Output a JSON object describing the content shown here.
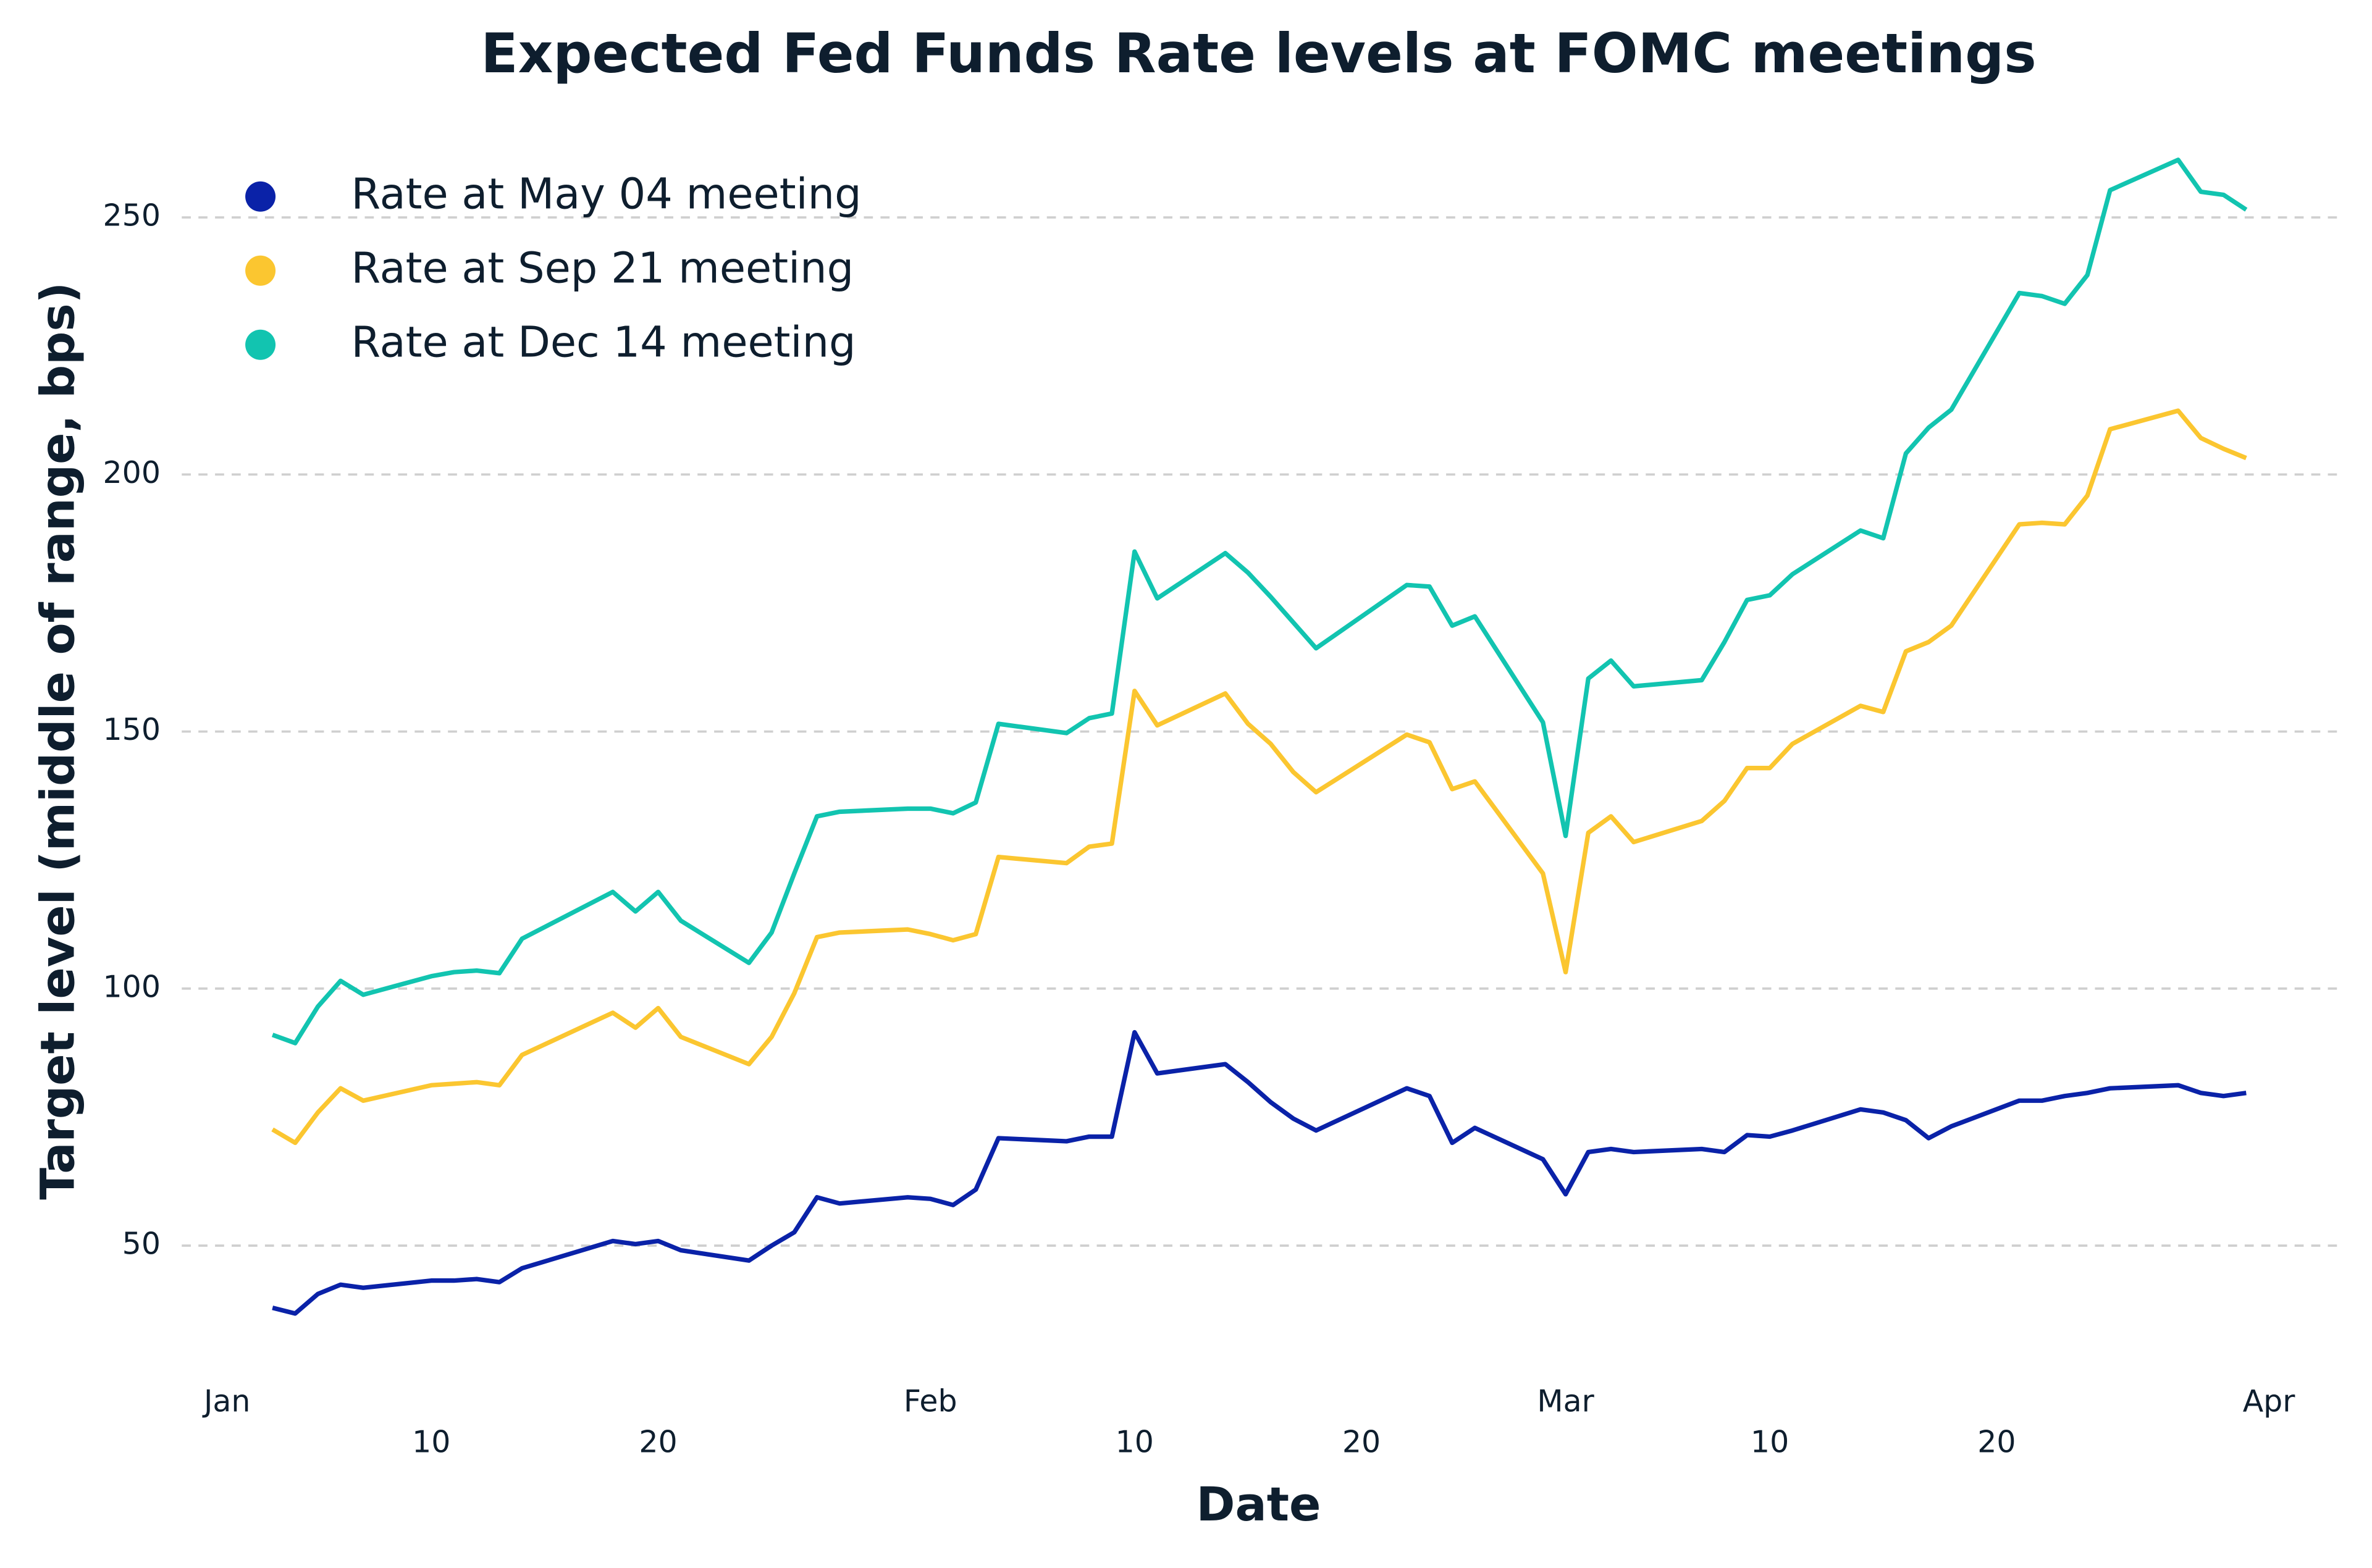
{
  "chart_data": {
    "type": "line",
    "title": "Expected Fed Funds Rate levels at FOMC meetings",
    "x_label": "Date",
    "y_label": "Target level (middle of range, bps)",
    "x": [
      "Jan 3",
      "Jan 4",
      "Jan 5",
      "Jan 6",
      "Jan 7",
      "Jan 10",
      "Jan 11",
      "Jan 12",
      "Jan 13",
      "Jan 14",
      "Jan 18",
      "Jan 19",
      "Jan 20",
      "Jan 21",
      "Jan 24",
      "Jan 25",
      "Jan 26",
      "Jan 27",
      "Jan 28",
      "Jan 31",
      "Feb 1",
      "Feb 2",
      "Feb 3",
      "Feb 4",
      "Feb 7",
      "Feb 8",
      "Feb 9",
      "Feb 10",
      "Feb 11",
      "Feb 14",
      "Feb 15",
      "Feb 16",
      "Feb 17",
      "Feb 18",
      "Feb 22",
      "Feb 23",
      "Feb 24",
      "Feb 25",
      "Feb 28",
      "Mar 1",
      "Mar 2",
      "Mar 3",
      "Mar 4",
      "Mar 7",
      "Mar 8",
      "Mar 9",
      "Mar 10",
      "Mar 11",
      "Mar 14",
      "Mar 15",
      "Mar 16",
      "Mar 17",
      "Mar 18",
      "Mar 21",
      "Mar 22",
      "Mar 23",
      "Mar 24",
      "Mar 25",
      "Mar 28",
      "Mar 29",
      "Mar 30",
      "Mar 31"
    ],
    "series": [
      {
        "name": "Rate at May 04 meeting",
        "color": "#0a22a8",
        "values": [
          37.9,
          36.8,
          40.6,
          42.4,
          41.8,
          43.2,
          43.2,
          43.5,
          42.9,
          45.6,
          50.9,
          50.3,
          50.9,
          49.1,
          47.1,
          50,
          52.6,
          59.4,
          58.2,
          59.4,
          59.1,
          57.9,
          60.9,
          70.9,
          70.3,
          71.2,
          71.2,
          91.5,
          83.5,
          85.3,
          81.8,
          77.9,
          74.7,
          72.4,
          80.6,
          79.1,
          70,
          72.9,
          66.8,
          60,
          68.2,
          68.8,
          68.2,
          68.8,
          68.2,
          71.5,
          71.2,
          72.4,
          76.5,
          75.9,
          74.4,
          70.9,
          73.2,
          78.2,
          78.2,
          79.1,
          79.7,
          80.6,
          81.2,
          79.7,
          79.1,
          79.7
        ]
      },
      {
        "name": "Rate at Sep 21 meeting",
        "color": "#fbc630",
        "values": [
          72.6,
          70,
          75.9,
          80.6,
          78.2,
          81.2,
          81.5,
          81.8,
          81.2,
          87.1,
          95.3,
          92.4,
          96.2,
          90.6,
          85.3,
          90.6,
          99.1,
          110,
          110.9,
          111.5,
          110.6,
          109.4,
          110.6,
          125.6,
          124.4,
          127.6,
          128.2,
          157.9,
          151.2,
          157.4,
          151.5,
          147.6,
          142.1,
          138.2,
          149.4,
          147.9,
          138.8,
          140.3,
          122.4,
          103.2,
          130.3,
          133.5,
          128.5,
          132.6,
          136.5,
          142.9,
          142.9,
          147.6,
          155,
          153.8,
          165.6,
          167.4,
          170.6,
          190.3,
          190.6,
          190.3,
          195.9,
          208.8,
          212.4,
          207.1,
          205,
          203.2
        ]
      },
      {
        "name": "Rate at Dec 14 meeting",
        "color": "#12c4b0",
        "values": [
          91,
          89.4,
          96.5,
          101.5,
          98.8,
          102.4,
          103.2,
          103.5,
          103,
          109.7,
          118.8,
          115,
          118.8,
          113.2,
          105,
          110.9,
          122.4,
          133.5,
          134.4,
          135,
          135,
          134.1,
          136.2,
          151.5,
          149.7,
          152.6,
          153.5,
          185,
          175.9,
          184.7,
          180.9,
          176.2,
          171.2,
          166.2,
          178.5,
          178.2,
          170.6,
          172.4,
          151.8,
          129.7,
          160.3,
          163.8,
          158.8,
          160,
          167.4,
          175.6,
          176.5,
          180.6,
          189.1,
          187.6,
          204.1,
          209.1,
          212.6,
          235.3,
          234.7,
          233.2,
          238.8,
          255.3,
          261.2,
          255,
          254.4,
          251.5
        ]
      }
    ],
    "xlim": [
      "Jan 1",
      "Apr 1"
    ],
    "xticks": [
      {
        "value": "Jan 1",
        "label": "Jan"
      },
      {
        "value": "Jan 10",
        "label": "10"
      },
      {
        "value": "Jan 20",
        "label": "20"
      },
      {
        "value": "Feb 1",
        "label": "Feb"
      },
      {
        "value": "Feb 10",
        "label": "10"
      },
      {
        "value": "Feb 20",
        "label": "20"
      },
      {
        "value": "Mar 1",
        "label": "Mar"
      },
      {
        "value": "Mar 10",
        "label": "10"
      },
      {
        "value": "Mar 20",
        "label": "20"
      },
      {
        "value": "Apr 1",
        "label": "Apr"
      }
    ],
    "ylim": [
      27,
      262
    ],
    "yticks": [
      50,
      100,
      150,
      200,
      250
    ],
    "grid": true,
    "legend": "top-left"
  }
}
